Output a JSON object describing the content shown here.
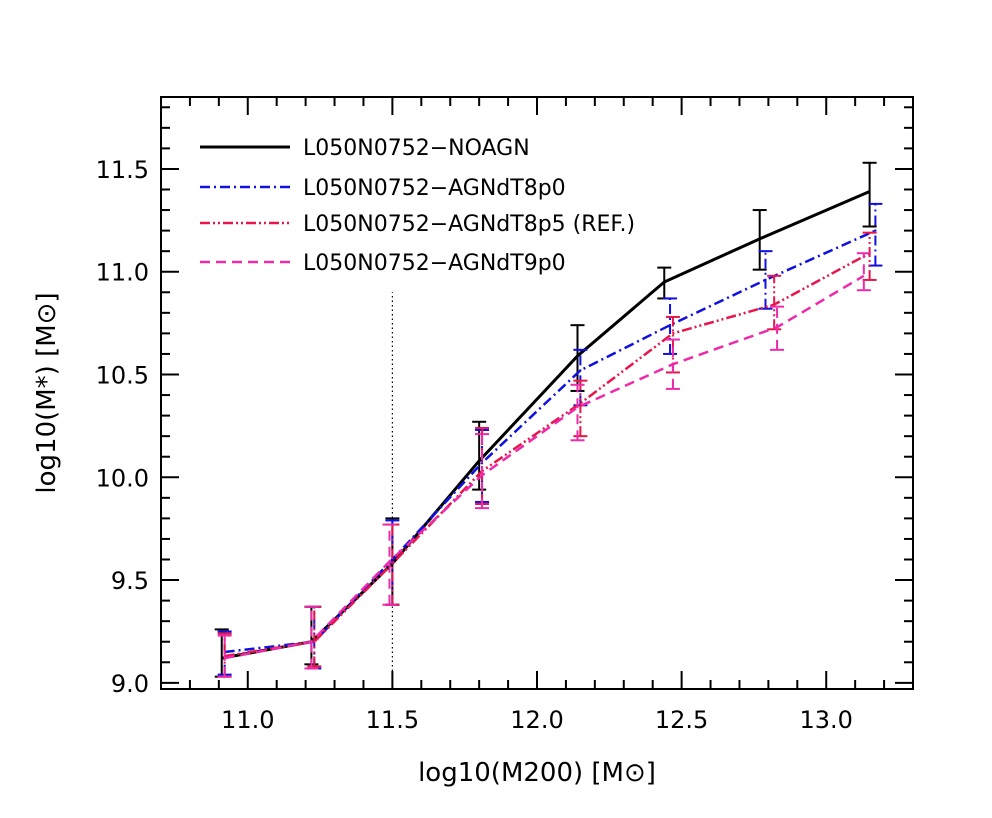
{
  "chart_data": {
    "type": "line",
    "title": "",
    "xlabel": "log10(M200) [M⊙]",
    "ylabel": "log10(M*) [M⊙]",
    "xlim": [
      10.7,
      13.3
    ],
    "ylim": [
      8.97,
      11.85
    ],
    "xticks": [
      11.0,
      11.5,
      12.0,
      12.5,
      13.0
    ],
    "xtick_labels": [
      "11.0",
      "11.5",
      "12.0",
      "12.5",
      "13.0"
    ],
    "yticks": [
      9.0,
      9.5,
      10.0,
      10.5,
      11.0,
      11.5
    ],
    "ytick_labels": [
      "9.0",
      "9.5",
      "10.0",
      "10.5",
      "11.0",
      "11.5"
    ],
    "vertical_line_x": 11.5,
    "vertical_line_ymax": 10.9,
    "legend_position": "top-left",
    "series": [
      {
        "name": "L050N0752−NOAGN",
        "color": "#000000",
        "style": "solid",
        "x": [
          10.91,
          11.22,
          11.5,
          11.8,
          12.14,
          12.44,
          12.77,
          13.15
        ],
        "y": [
          9.12,
          9.2,
          9.58,
          10.08,
          10.59,
          10.95,
          11.16,
          11.39
        ],
        "err_low": [
          9.03,
          9.09,
          9.38,
          9.94,
          10.42,
          10.87,
          11.01,
          11.22
        ],
        "err_high": [
          9.26,
          9.37,
          9.8,
          10.27,
          10.74,
          11.02,
          11.3,
          11.53
        ]
      },
      {
        "name": "L050N0752−AGNdT8p0",
        "color": "#1010e0",
        "style": "dashdot",
        "x": [
          10.92,
          11.23,
          11.5,
          11.81,
          12.15,
          12.46,
          12.79,
          13.17
        ],
        "y": [
          9.15,
          9.2,
          9.6,
          10.07,
          10.52,
          10.74,
          10.96,
          11.2
        ],
        "err_low": [
          9.04,
          9.07,
          9.38,
          9.88,
          10.35,
          10.6,
          10.82,
          11.03
        ],
        "err_high": [
          9.25,
          9.37,
          9.79,
          10.23,
          10.62,
          10.87,
          11.1,
          11.33
        ]
      },
      {
        "name": "L050N0752−AGNdT8p5 (REF.)",
        "color": "#e8154b",
        "style": "dashdotdot",
        "x": [
          10.92,
          11.23,
          11.5,
          11.81,
          12.15,
          12.47,
          12.82,
          13.15
        ],
        "y": [
          9.13,
          9.2,
          9.58,
          10.03,
          10.36,
          10.7,
          10.84,
          11.09
        ],
        "err_low": [
          9.03,
          9.08,
          9.38,
          9.87,
          10.2,
          10.51,
          10.72,
          10.96
        ],
        "err_high": [
          9.24,
          9.37,
          9.77,
          10.24,
          10.47,
          10.78,
          10.98,
          11.19
        ]
      },
      {
        "name": "L050N0752−AGNdT9p0",
        "color": "#ee2aaa",
        "style": "dashed",
        "x": [
          10.92,
          11.22,
          11.49,
          11.81,
          12.14,
          12.47,
          12.83,
          13.13
        ],
        "y": [
          9.12,
          9.2,
          9.59,
          10.01,
          10.34,
          10.55,
          10.73,
          10.98
        ],
        "err_low": [
          9.03,
          9.07,
          9.38,
          9.85,
          10.18,
          10.43,
          10.62,
          10.91
        ],
        "err_high": [
          9.23,
          9.37,
          9.77,
          10.21,
          10.45,
          10.67,
          10.83,
          11.09
        ]
      }
    ]
  }
}
